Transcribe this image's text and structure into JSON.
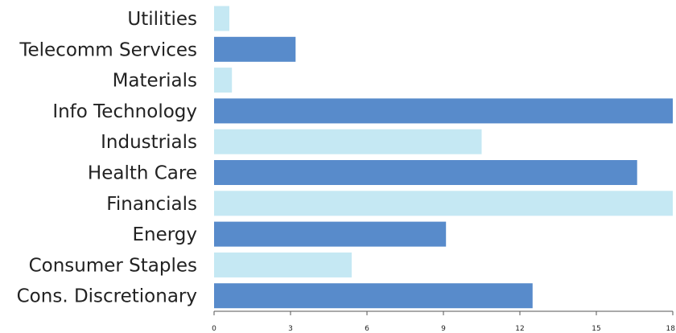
{
  "chart_data": {
    "type": "bar",
    "orientation": "horizontal",
    "title": "",
    "xlabel": "",
    "ylabel": "",
    "xlim": [
      0,
      18
    ],
    "xticks": [
      0,
      3,
      6,
      9,
      12,
      15,
      18
    ],
    "grid": false,
    "legend": "none",
    "categories": [
      "Utilities",
      "Telecomm Services",
      "Materials",
      "Info Technology",
      "Industrials",
      "Health Care",
      "Financials",
      "Energy",
      "Consumer Staples",
      "Cons. Discretionary"
    ],
    "values": [
      0.6,
      3.2,
      0.7,
      18.0,
      10.5,
      16.6,
      18.0,
      9.1,
      5.4,
      12.5
    ],
    "colors": [
      "#c5e8f3",
      "#588bcb",
      "#c5e8f3",
      "#588bcb",
      "#c5e8f3",
      "#588bcb",
      "#c5e8f3",
      "#588bcb",
      "#c5e8f3",
      "#588bcb"
    ]
  }
}
